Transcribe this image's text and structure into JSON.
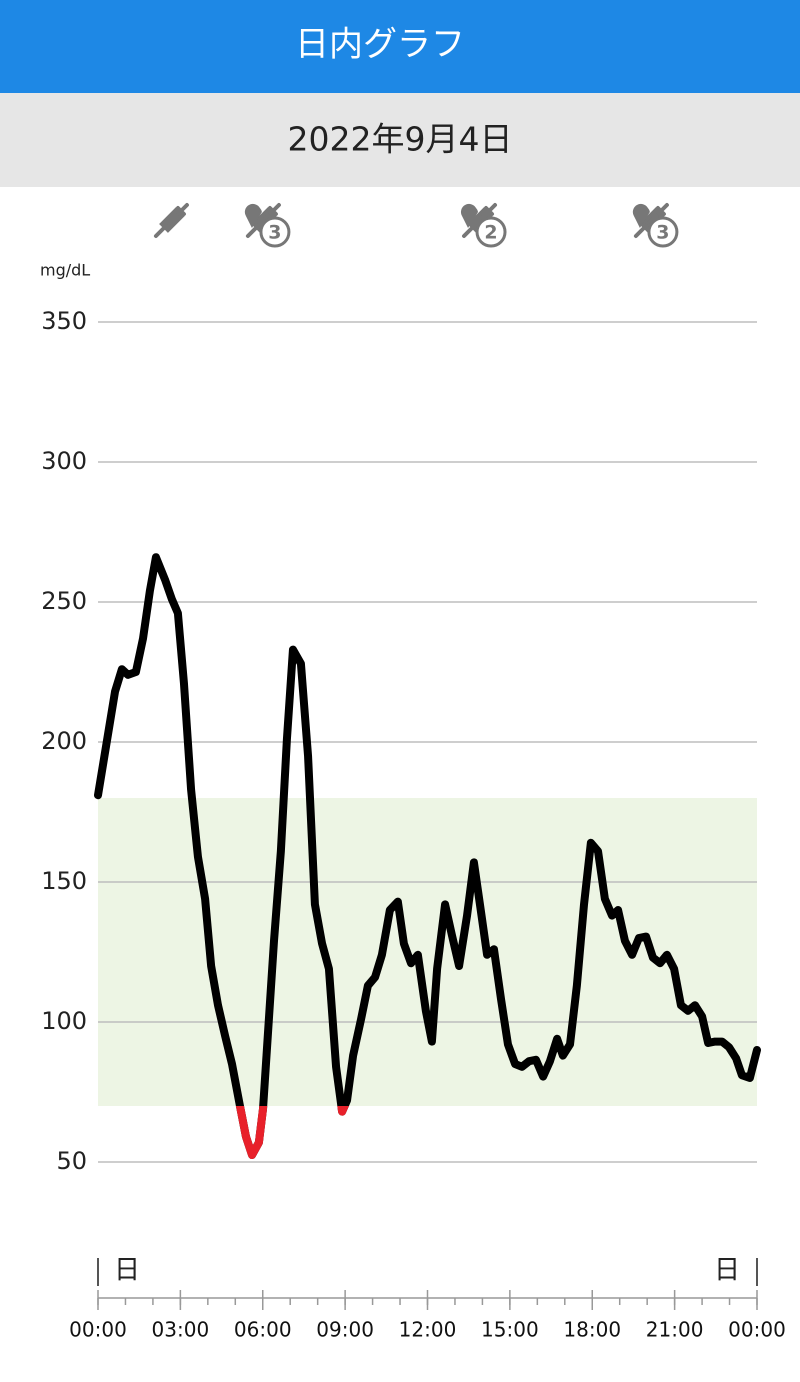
{
  "header": {
    "title": "日内グラフ"
  },
  "date": "2022年9月4日",
  "chart_data": {
    "type": "line",
    "y_label": "mg/dL",
    "x": [
      0,
      0.62,
      0.87,
      1.09,
      1.38,
      1.64,
      1.89,
      2.11,
      2.44,
      2.69,
      2.91,
      3.13,
      3.39,
      3.64,
      3.9,
      4.12,
      4.37,
      4.63,
      4.88,
      5.17,
      5.39,
      5.61,
      5.86,
      6.01,
      6.15,
      6.41,
      6.66,
      6.88,
      7.1,
      7.39,
      7.65,
      7.9,
      8.16,
      8.41,
      8.67,
      8.89,
      9.07,
      9.29,
      9.58,
      9.83,
      10.09,
      10.34,
      10.63,
      10.92,
      11.14,
      11.4,
      11.65,
      11.94,
      12.16,
      12.35,
      12.64,
      12.89,
      13.15,
      13.44,
      13.69,
      13.91,
      14.17,
      14.42,
      14.68,
      14.93,
      15.19,
      15.44,
      15.7,
      15.95,
      16.21,
      16.46,
      16.72,
      16.93,
      17.19,
      17.44,
      17.7,
      17.95,
      18.21,
      18.46,
      18.72,
      18.94,
      19.19,
      19.45,
      19.7,
      19.96,
      20.21,
      20.47,
      20.72,
      20.98,
      21.23,
      21.49,
      21.74,
      22,
      22.22,
      22.47,
      22.73,
      22.98,
      23.24,
      23.45,
      23.74,
      24
    ],
    "values": [
      181,
      218,
      226,
      224,
      225,
      237,
      254,
      266,
      258,
      251,
      246,
      221,
      183,
      159,
      144,
      120,
      106,
      95,
      85,
      70,
      59,
      52.5,
      57,
      69,
      90,
      129,
      161,
      201,
      233,
      228,
      195,
      142,
      128,
      119,
      84,
      68,
      72,
      88,
      101,
      113,
      116,
      124,
      140,
      143,
      128,
      121,
      124,
      104,
      93,
      119,
      142,
      131,
      120,
      138,
      157,
      142,
      124,
      126,
      108,
      92,
      85,
      84,
      86,
      86.5,
      80.5,
      86,
      94,
      88,
      92,
      113,
      142,
      164,
      161,
      144,
      138,
      140,
      129,
      124,
      130,
      130.5,
      123,
      121,
      124,
      119,
      106,
      104,
      106,
      102,
      92.5,
      93,
      93,
      91,
      87,
      81,
      80,
      90
    ],
    "color": "#000000",
    "low_color": "#e8202a",
    "target_range": [
      70,
      180
    ],
    "target_color": "#edf5e4",
    "xlim": [
      0,
      24
    ],
    "xticks": [
      {
        "value": 0,
        "label": "00:00"
      },
      {
        "value": 3,
        "label": "03:00"
      },
      {
        "value": 6,
        "label": "06:00"
      },
      {
        "value": 9,
        "label": "09:00"
      },
      {
        "value": 12,
        "label": "12:00"
      },
      {
        "value": 15,
        "label": "15:00"
      },
      {
        "value": 18,
        "label": "18:00"
      },
      {
        "value": 21,
        "label": "21:00"
      },
      {
        "value": 24,
        "label": "00:00"
      }
    ],
    "ylim": [
      50,
      350
    ],
    "yticks": [
      50,
      100,
      150,
      200,
      250,
      300,
      350
    ],
    "grid": true,
    "day_markers": [
      "日",
      "日"
    ],
    "events": [
      {
        "x": 2.62
      },
      {
        "x": 5.97,
        "badge": 3
      },
      {
        "x": 13.84,
        "badge": 2
      },
      {
        "x": 20.1,
        "badge": 3
      }
    ]
  }
}
